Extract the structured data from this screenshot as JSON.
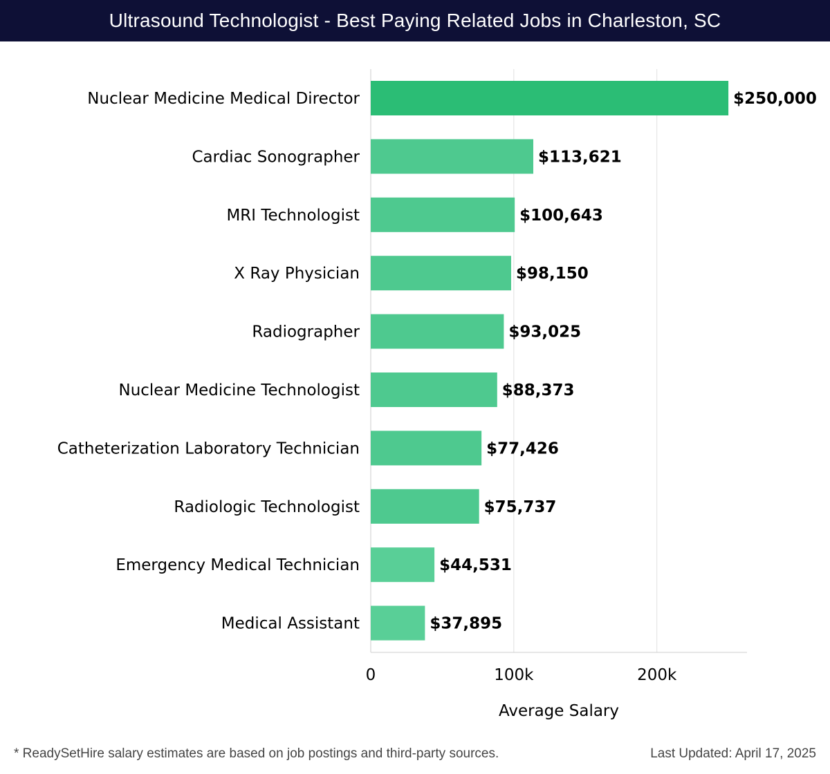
{
  "header": {
    "title": "Ultrasound Technologist - Best Paying Related Jobs in Charleston, SC"
  },
  "chart_data": {
    "type": "bar",
    "orientation": "horizontal",
    "title": "Ultrasound Technologist - Best Paying Related Jobs in Charleston, SC",
    "xlabel": "Average Salary",
    "ylabel": "",
    "xlim": [
      0,
      263000
    ],
    "xticks": [
      0,
      100000,
      200000
    ],
    "xtick_labels": [
      "0",
      "100k",
      "200k"
    ],
    "grid": true,
    "categories": [
      "Nuclear Medicine Medical Director",
      "Cardiac Sonographer",
      "MRI Technologist",
      "X Ray Physician",
      "Radiographer",
      "Nuclear Medicine Technologist",
      "Catheterization Laboratory Technician",
      "Radiologic Technologist",
      "Emergency Medical Technician",
      "Medical Assistant"
    ],
    "values": [
      250000,
      113621,
      100643,
      98150,
      93025,
      88373,
      77426,
      75737,
      44531,
      37895
    ],
    "value_labels": [
      "$250,000",
      "$113,621",
      "$100,643",
      "$98,150",
      "$93,025",
      "$88,373",
      "$77,426",
      "$75,737",
      "$44,531",
      "$37,895"
    ],
    "colors": {
      "highlight": "#2bbd75",
      "bar": "#4ec98f",
      "bar_light": "#59cf97",
      "grid": "#e0e0e0",
      "axis": "#cccccc"
    }
  },
  "footer": {
    "note": "* ReadySetHire salary estimates are based on job postings and third-party sources.",
    "updated": "Last Updated: April 17, 2025"
  }
}
